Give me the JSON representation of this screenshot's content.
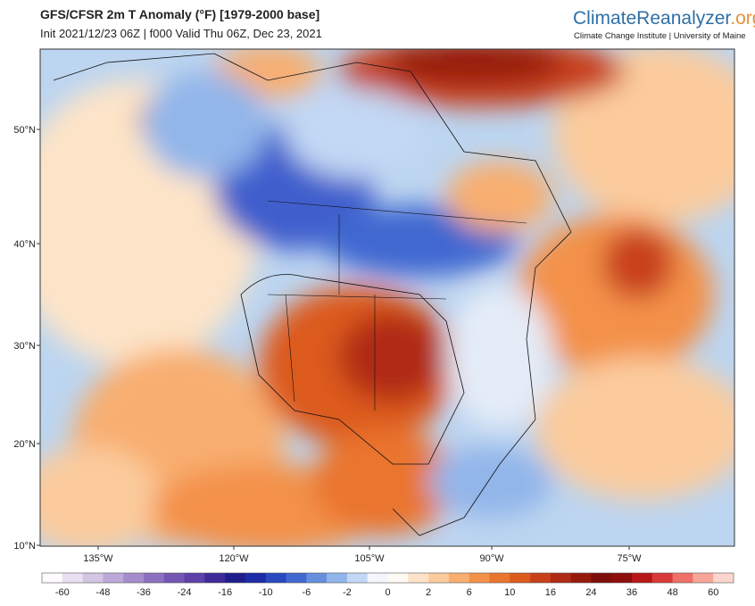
{
  "header": {
    "title": "GFS/CFSR 2m T Anomaly (°F) [1979-2000 base]",
    "subtitle": "Init 2021/12/23 06Z | f000 Valid Thu 06Z, Dec 23, 2021"
  },
  "logo": {
    "name": "ClimateReanalyzer",
    "suffix": ".org",
    "tagline": "Climate Change Institute | University of Maine"
  },
  "map": {
    "lat_labels": [
      "50°N",
      "40°N",
      "30°N",
      "20°N",
      "10°N"
    ],
    "lon_labels": [
      "135°W",
      "120°W",
      "105°W",
      "90°W",
      "75°W"
    ]
  },
  "colorbar": {
    "ticks": [
      -60,
      -48,
      -36,
      -24,
      -16,
      -10,
      -6,
      -2,
      0,
      2,
      6,
      10,
      16,
      24,
      36,
      48,
      60
    ],
    "colors": [
      "#fdfbfe",
      "#e9e0f1",
      "#d5c5e5",
      "#bda9d9",
      "#a58ccd",
      "#8c70c0",
      "#7456b3",
      "#5d40a8",
      "#3e2a98",
      "#1f1d8c",
      "#1c2ba6",
      "#2a48c0",
      "#4168d0",
      "#6690dd",
      "#92b6ea",
      "#c2d8f4",
      "#f3f7fd",
      "#fffaf3",
      "#fde4c8",
      "#fbcb9c",
      "#f8ae70",
      "#f3914a",
      "#ea752e",
      "#dc5a1c",
      "#c8401a",
      "#b02a14",
      "#961a0c",
      "#7e0e0a",
      "#8e0e0e",
      "#b81818",
      "#d83a3a",
      "#ee7068",
      "#f7a598",
      "#fcd6cc"
    ]
  }
}
